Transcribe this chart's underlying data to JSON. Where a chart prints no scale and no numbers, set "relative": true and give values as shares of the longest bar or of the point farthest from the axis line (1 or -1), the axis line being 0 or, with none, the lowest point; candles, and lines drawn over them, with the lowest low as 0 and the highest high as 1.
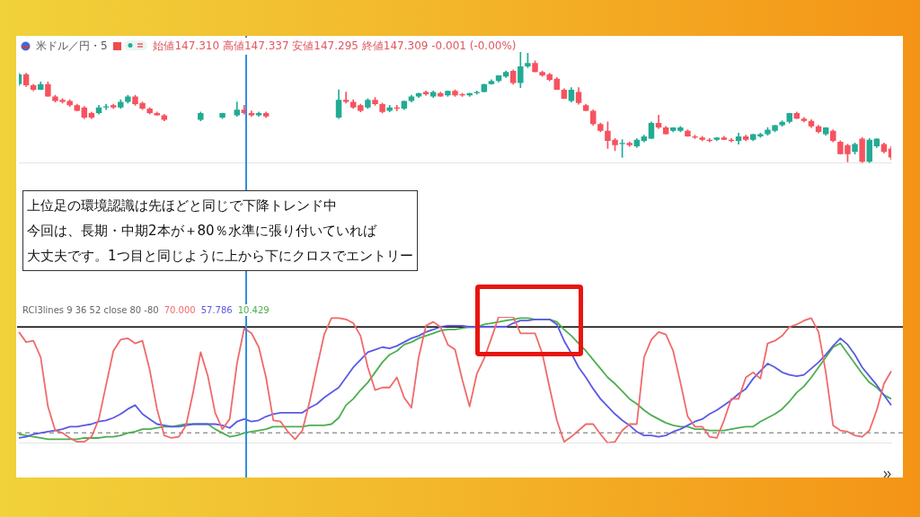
{
  "chart_data": [
    {
      "type": "candlestick",
      "title": "米ドル／円・5",
      "subtitle": "始値147.310 高値147.337 安値147.295 終値147.309 -0.001 (-0.00%)",
      "annotations": [
        "上位足の環境認識は先ほどと同じで下降トレンド中",
        "今回は、長期・中期2本が＋80％水準に張り付いていれば",
        "大丈夫です。1つ目と同じように上から下にクロスでエントリー"
      ],
      "relative": true,
      "colors": [
        "#22ab94",
        "#f7525f",
        "#f7525f",
        "#22ab94",
        "#f7525f",
        "#f7525f",
        "#f7525f",
        "#f7525f",
        "#f7525f",
        "#f7525f",
        "#f7525f",
        "#22ab94",
        "#22ab94",
        "#f7525f",
        "#22ab94",
        "#22ab94",
        "#f7525f",
        "#f7525f",
        "#f7525f",
        "#f7525f",
        "#f7525f",
        null,
        null,
        null,
        null,
        "#22ab94",
        null,
        null,
        "#22ab94",
        null,
        "#22ab94",
        "#f7525f",
        "#f7525f",
        "#22ab94",
        "#f7525f",
        null,
        null,
        null,
        null,
        null,
        null,
        null,
        null,
        null,
        "#22ab94",
        "#f7525f",
        "#f7525f",
        "#f7525f",
        "#22ab94",
        "#f7525f",
        "#f7525f",
        "#22ab94",
        "#f7525f",
        "#22ab94",
        "#22ab94",
        "#22ab94",
        "#f7525f",
        "#22ab94",
        "#f7525f",
        "#22ab94",
        "#f7525f",
        "#f7525f",
        "#22ab94",
        "#22ab94",
        "#22ab94",
        "#22ab94",
        "#22ab94",
        "#22ab94",
        "#f7525f",
        "#22ab94",
        "#22ab94",
        "#f7525f",
        "#f7525f",
        "#f7525f",
        "#f7525f",
        "#f7525f",
        "#22ab94",
        "#f7525f",
        "#f7525f",
        "#f7525f",
        "#f7525f",
        "#f7525f",
        "#f7525f",
        "#22ab94",
        "#f7525f",
        "#22ab94",
        "#22ab94",
        "#22ab94",
        "#f7525f",
        "#f7525f",
        "#22ab94",
        "#22ab94",
        "#f7525f",
        "#f7525f",
        "#f7525f",
        "#f7525f",
        "#22ab94",
        "#f7525f",
        "#f7525f",
        "#22ab94",
        "#f7525f",
        "#22ab94",
        "#22ab94",
        "#22ab94",
        "#22ab94",
        "#22ab94",
        "#22ab94",
        "#f7525f",
        "#f7525f",
        "#f7525f",
        "#f7525f",
        "#22ab94",
        "#f7525f",
        "#f7525f",
        "#f7525f",
        "#22ab94",
        "#f7525f",
        "#22ab94",
        "#22ab94",
        "#f7525f",
        "#f7525f"
      ],
      "categories": [
        null,
        null,
        null,
        null,
        null,
        null,
        null,
        null,
        null,
        null,
        null,
        null,
        null,
        null,
        null,
        null,
        null,
        null,
        null,
        null,
        null,
        null,
        null,
        null,
        null,
        null,
        null,
        null,
        null,
        null,
        null,
        null,
        null,
        null,
        null,
        null,
        null,
        null,
        null,
        null,
        null,
        null,
        null,
        null,
        null,
        null,
        null,
        null,
        null,
        null,
        null,
        null,
        null,
        null,
        null,
        null,
        null,
        null,
        null,
        null,
        null,
        null,
        null,
        null,
        null,
        null,
        null,
        null,
        null,
        null,
        null,
        null,
        null,
        null,
        null,
        null,
        null,
        null,
        null,
        null,
        null,
        null,
        null,
        null,
        null,
        null,
        null,
        null,
        null,
        null,
        null,
        null,
        null,
        null,
        null,
        null,
        null,
        null,
        null,
        null,
        null,
        null,
        null,
        null,
        null,
        null,
        null,
        null,
        null,
        null,
        null,
        null,
        null,
        null,
        null,
        null,
        null,
        null,
        null,
        null,
        null
      ],
      "ohlc": [
        [
          0.71,
          0.81,
          0.7,
          0.8
        ],
        [
          0.8,
          0.81,
          0.69,
          0.7
        ],
        [
          0.7,
          0.71,
          0.65,
          0.66
        ],
        [
          0.66,
          0.73,
          0.66,
          0.71
        ],
        [
          0.71,
          0.73,
          0.6,
          0.6
        ],
        [
          0.6,
          0.61,
          0.55,
          0.56
        ],
        [
          0.57,
          0.58,
          0.54,
          0.55
        ],
        [
          0.56,
          0.57,
          0.51,
          0.52
        ],
        [
          0.52,
          0.53,
          0.47,
          0.47
        ],
        [
          0.5,
          0.51,
          0.4,
          0.41
        ],
        [
          0.45,
          0.46,
          0.4,
          0.41
        ],
        [
          0.45,
          0.52,
          0.44,
          0.5
        ],
        [
          0.5,
          0.53,
          0.48,
          0.51
        ],
        [
          0.52,
          0.53,
          0.49,
          0.5
        ],
        [
          0.5,
          0.57,
          0.49,
          0.55
        ],
        [
          0.55,
          0.61,
          0.54,
          0.6
        ],
        [
          0.6,
          0.61,
          0.52,
          0.53
        ],
        [
          0.54,
          0.55,
          0.48,
          0.49
        ],
        [
          0.49,
          0.5,
          0.44,
          0.45
        ],
        [
          0.45,
          0.46,
          0.43,
          0.43
        ],
        [
          0.43,
          0.44,
          0.38,
          0.39
        ],
        null,
        null,
        null,
        null,
        [
          0.39,
          0.46,
          0.38,
          0.45
        ],
        null,
        null,
        [
          0.41,
          0.45,
          0.4,
          0.45
        ],
        null,
        [
          0.43,
          0.55,
          0.42,
          0.48
        ],
        [
          0.48,
          0.52,
          0.44,
          0.45
        ],
        [
          0.45,
          0.47,
          0.42,
          0.43
        ],
        [
          0.43,
          0.46,
          0.42,
          0.45
        ],
        [
          0.45,
          0.46,
          0.41,
          0.42
        ],
        null,
        null,
        null,
        null,
        null,
        null,
        null,
        null,
        null,
        [
          0.41,
          0.66,
          0.4,
          0.57
        ],
        [
          0.57,
          0.64,
          0.54,
          0.55
        ],
        [
          0.55,
          0.57,
          0.49,
          0.5
        ],
        [
          0.52,
          0.53,
          0.46,
          0.47
        ],
        [
          0.5,
          0.58,
          0.49,
          0.57
        ],
        [
          0.57,
          0.59,
          0.52,
          0.53
        ],
        [
          0.53,
          0.54,
          0.45,
          0.46
        ],
        [
          0.47,
          0.52,
          0.46,
          0.5
        ],
        [
          0.5,
          0.52,
          0.47,
          0.49
        ],
        [
          0.49,
          0.56,
          0.48,
          0.56
        ],
        [
          0.56,
          0.61,
          0.55,
          0.6
        ],
        [
          0.6,
          0.63,
          0.59,
          0.63
        ],
        [
          0.64,
          0.65,
          0.61,
          0.62
        ],
        [
          0.6,
          0.65,
          0.59,
          0.64
        ],
        [
          0.63,
          0.64,
          0.6,
          0.6
        ],
        [
          0.61,
          0.65,
          0.6,
          0.65
        ],
        [
          0.65,
          0.66,
          0.6,
          0.61
        ],
        [
          0.62,
          0.63,
          0.6,
          0.61
        ],
        [
          0.61,
          0.63,
          0.6,
          0.63
        ],
        [
          0.63,
          0.65,
          0.62,
          0.64
        ],
        [
          0.64,
          0.71,
          0.64,
          0.71
        ],
        [
          0.71,
          0.75,
          0.71,
          0.74
        ],
        [
          0.74,
          0.79,
          0.73,
          0.79
        ],
        [
          0.78,
          0.83,
          0.77,
          0.82
        ],
        [
          0.83,
          0.84,
          0.71,
          0.72
        ],
        [
          0.72,
          1.0,
          0.68,
          0.87
        ],
        [
          0.87,
          0.99,
          0.86,
          0.9
        ],
        [
          0.9,
          0.92,
          0.82,
          0.82
        ],
        [
          0.82,
          0.83,
          0.78,
          0.79
        ],
        [
          0.8,
          0.81,
          0.74,
          0.75
        ],
        [
          0.76,
          0.77,
          0.66,
          0.66
        ],
        [
          0.66,
          0.67,
          0.58,
          0.58
        ],
        [
          0.56,
          0.68,
          0.55,
          0.66
        ],
        [
          0.64,
          0.68,
          0.53,
          0.54
        ],
        [
          0.52,
          0.53,
          0.47,
          0.47
        ],
        [
          0.47,
          0.48,
          0.34,
          0.35
        ],
        [
          0.35,
          0.36,
          0.28,
          0.29
        ],
        [
          0.29,
          0.37,
          0.13,
          0.2
        ],
        [
          0.21,
          0.22,
          0.11,
          0.16
        ],
        [
          0.17,
          0.21,
          0.05,
          0.18
        ],
        [
          0.18,
          0.19,
          0.15,
          0.16
        ],
        [
          0.15,
          0.22,
          0.14,
          0.21
        ],
        [
          0.2,
          0.25,
          0.19,
          0.24
        ],
        [
          0.22,
          0.37,
          0.22,
          0.36
        ],
        [
          0.36,
          0.43,
          0.31,
          0.32
        ],
        [
          0.32,
          0.33,
          0.26,
          0.26
        ],
        [
          0.29,
          0.32,
          0.28,
          0.32
        ],
        [
          0.29,
          0.33,
          0.28,
          0.32
        ],
        [
          0.29,
          0.3,
          0.24,
          0.24
        ],
        [
          0.24,
          0.25,
          0.22,
          0.23
        ],
        [
          0.23,
          0.24,
          0.2,
          0.21
        ],
        [
          0.21,
          0.22,
          0.19,
          0.2
        ],
        [
          0.21,
          0.23,
          0.2,
          0.23
        ],
        [
          0.23,
          0.24,
          0.21,
          0.21
        ],
        [
          0.21,
          0.22,
          0.19,
          0.2
        ],
        [
          0.2,
          0.27,
          0.17,
          0.24
        ],
        [
          0.24,
          0.25,
          0.2,
          0.21
        ],
        [
          0.21,
          0.26,
          0.2,
          0.26
        ],
        [
          0.24,
          0.27,
          0.23,
          0.26
        ],
        [
          0.26,
          0.32,
          0.25,
          0.3
        ],
        [
          0.29,
          0.34,
          0.28,
          0.34
        ],
        [
          0.34,
          0.38,
          0.33,
          0.37
        ],
        [
          0.37,
          0.45,
          0.36,
          0.45
        ],
        [
          0.45,
          0.46,
          0.4,
          0.4
        ],
        [
          0.4,
          0.41,
          0.37,
          0.38
        ],
        [
          0.38,
          0.39,
          0.32,
          0.33
        ],
        [
          0.33,
          0.34,
          0.27,
          0.28
        ],
        [
          0.26,
          0.32,
          0.25,
          0.32
        ],
        [
          0.29,
          0.3,
          0.19,
          0.2
        ],
        [
          0.19,
          0.2,
          0.08,
          0.08
        ],
        [
          0.16,
          0.17,
          0.01,
          0.08
        ],
        [
          0.1,
          0.18,
          0.08,
          0.17
        ],
        [
          0.22,
          0.23,
          0.0,
          0.01
        ],
        [
          0.01,
          0.22,
          0.0,
          0.21
        ],
        [
          0.15,
          0.22,
          0.14,
          0.22
        ],
        [
          0.17,
          0.18,
          0.09,
          0.1
        ],
        [
          0.13,
          0.15,
          0.03,
          0.05
        ]
      ]
    },
    {
      "type": "line",
      "title": "RCI3lines 9 36 52 close 80 -80",
      "annotations": [
        "70.000",
        "57.786",
        "10.429"
      ],
      "relative": true,
      "marker": "none",
      "line_style": "solid",
      "ref_lines": [
        {
          "axis": "y",
          "value": 0.92,
          "color": "#000000",
          "line_style": "solid"
        },
        {
          "axis": "y",
          "value": 0.08,
          "color": "#999999",
          "line_style": "dashed"
        }
      ],
      "categories": [
        null,
        null,
        null,
        null,
        null,
        null,
        null,
        null,
        null,
        null,
        null,
        null,
        null,
        null,
        null,
        null,
        null,
        null,
        null,
        null,
        null,
        null,
        null,
        null,
        null,
        null,
        null,
        null,
        null,
        null,
        null,
        null,
        null,
        null,
        null,
        null,
        null,
        null,
        null,
        null,
        null,
        null,
        null,
        null,
        null,
        null,
        null,
        null,
        null,
        null,
        null,
        null,
        null,
        null,
        null,
        null,
        null,
        null,
        null,
        null,
        null,
        null,
        null,
        null,
        null,
        null,
        null,
        null,
        null,
        null,
        null,
        null,
        null,
        null,
        null,
        null,
        null,
        null,
        null,
        null,
        null,
        null,
        null,
        null,
        null,
        null,
        null,
        null,
        null,
        null,
        null,
        null,
        null,
        null,
        null,
        null,
        null,
        null,
        null,
        null,
        null,
        null,
        null,
        null,
        null,
        null,
        null,
        null,
        null,
        null,
        null,
        null,
        null,
        null,
        null,
        null,
        null,
        null,
        null,
        null,
        null
      ],
      "series": [
        {
          "color": "#f06a6a",
          "values": [
            0.88,
            0.8,
            0.81,
            0.68,
            0.29,
            0.1,
            0.08,
            0.04,
            0.01,
            0.01,
            0.05,
            0.19,
            0.46,
            0.73,
            0.82,
            0.83,
            0.79,
            0.81,
            0.58,
            0.27,
            0.06,
            0.04,
            0.05,
            0.14,
            0.41,
            0.72,
            0.53,
            0.24,
            0.11,
            0.19,
            0.63,
            0.91,
            0.87,
            0.76,
            0.52,
            0.18,
            0.17,
            0.09,
            0.03,
            0.1,
            0.33,
            0.6,
            0.86,
            0.99,
            0.99,
            0.98,
            0.95,
            0.85,
            0.6,
            0.42,
            0.44,
            0.44,
            0.52,
            0.36,
            0.28,
            0.68,
            0.93,
            0.96,
            0.92,
            0.78,
            0.74,
            0.5,
            0.29,
            0.55,
            0.67,
            0.83,
            1.0,
            1.0,
            1.0,
            0.87,
            0.87,
            0.87,
            0.71,
            0.44,
            0.18,
            0.01,
            0.05,
            0.1,
            0.15,
            0.15,
            0.07,
            0.0,
            0.01,
            0.1,
            0.15,
            0.15,
            0.68,
            0.82,
            0.88,
            0.86,
            0.73,
            0.48,
            0.21,
            0.13,
            0.13,
            0.05,
            0.04,
            0.18,
            0.35,
            0.35,
            0.52,
            0.56,
            0.51,
            0.79,
            0.81,
            0.85,
            0.92,
            0.94,
            0.97,
            0.99,
            0.88,
            0.56,
            0.14,
            0.1,
            0.09,
            0.06,
            0.05,
            0.1,
            0.26,
            0.47,
            0.57
          ]
        },
        {
          "color": "#5a5ae6",
          "values": [
            0.04,
            0.05,
            0.07,
            0.08,
            0.09,
            0.1,
            0.11,
            0.13,
            0.13,
            0.14,
            0.15,
            0.17,
            0.18,
            0.2,
            0.23,
            0.27,
            0.3,
            0.23,
            0.19,
            0.15,
            0.14,
            0.13,
            0.13,
            0.14,
            0.15,
            0.15,
            0.15,
            0.15,
            0.14,
            0.12,
            0.17,
            0.19,
            0.17,
            0.18,
            0.21,
            0.23,
            0.24,
            0.24,
            0.24,
            0.24,
            0.28,
            0.31,
            0.36,
            0.4,
            0.44,
            0.52,
            0.6,
            0.66,
            0.72,
            0.74,
            0.76,
            0.75,
            0.77,
            0.8,
            0.83,
            0.85,
            0.88,
            0.9,
            0.92,
            0.93,
            0.93,
            0.93,
            0.92,
            0.92,
            0.92,
            0.92,
            0.92,
            0.92,
            0.95,
            0.97,
            0.97,
            0.98,
            0.98,
            0.98,
            0.94,
            0.81,
            0.71,
            0.6,
            0.52,
            0.43,
            0.35,
            0.29,
            0.23,
            0.18,
            0.14,
            0.09,
            0.06,
            0.06,
            0.05,
            0.06,
            0.09,
            0.11,
            0.14,
            0.17,
            0.19,
            0.23,
            0.26,
            0.3,
            0.34,
            0.39,
            0.43,
            0.51,
            0.57,
            0.63,
            0.6,
            0.56,
            0.54,
            0.53,
            0.54,
            0.59,
            0.64,
            0.7,
            0.77,
            0.83,
            0.78,
            0.7,
            0.6,
            0.53,
            0.46,
            0.38,
            0.3
          ]
        },
        {
          "color": "#4caf50",
          "values": [
            0.07,
            0.06,
            0.05,
            0.04,
            0.03,
            0.03,
            0.03,
            0.03,
            0.03,
            0.04,
            0.04,
            0.04,
            0.05,
            0.05,
            0.06,
            0.08,
            0.09,
            0.11,
            0.11,
            0.12,
            0.13,
            0.13,
            0.14,
            0.15,
            0.15,
            0.15,
            0.15,
            0.11,
            0.08,
            0.05,
            0.06,
            0.08,
            0.09,
            0.1,
            0.11,
            0.13,
            0.13,
            0.13,
            0.13,
            0.13,
            0.14,
            0.14,
            0.14,
            0.15,
            0.2,
            0.3,
            0.35,
            0.42,
            0.48,
            0.56,
            0.64,
            0.7,
            0.73,
            0.78,
            0.8,
            0.83,
            0.85,
            0.87,
            0.89,
            0.9,
            0.9,
            0.91,
            0.92,
            0.92,
            0.94,
            0.95,
            0.96,
            0.97,
            0.98,
            0.99,
            0.99,
            0.98,
            0.98,
            0.98,
            0.96,
            0.9,
            0.85,
            0.79,
            0.73,
            0.66,
            0.59,
            0.52,
            0.47,
            0.41,
            0.35,
            0.31,
            0.26,
            0.22,
            0.19,
            0.16,
            0.14,
            0.13,
            0.13,
            0.11,
            0.11,
            0.1,
            0.1,
            0.1,
            0.11,
            0.12,
            0.13,
            0.13,
            0.17,
            0.2,
            0.23,
            0.27,
            0.33,
            0.4,
            0.45,
            0.52,
            0.6,
            0.68,
            0.76,
            0.79,
            0.71,
            0.63,
            0.55,
            0.48,
            0.44,
            0.38,
            0.35
          ]
        }
      ]
    }
  ]
}
